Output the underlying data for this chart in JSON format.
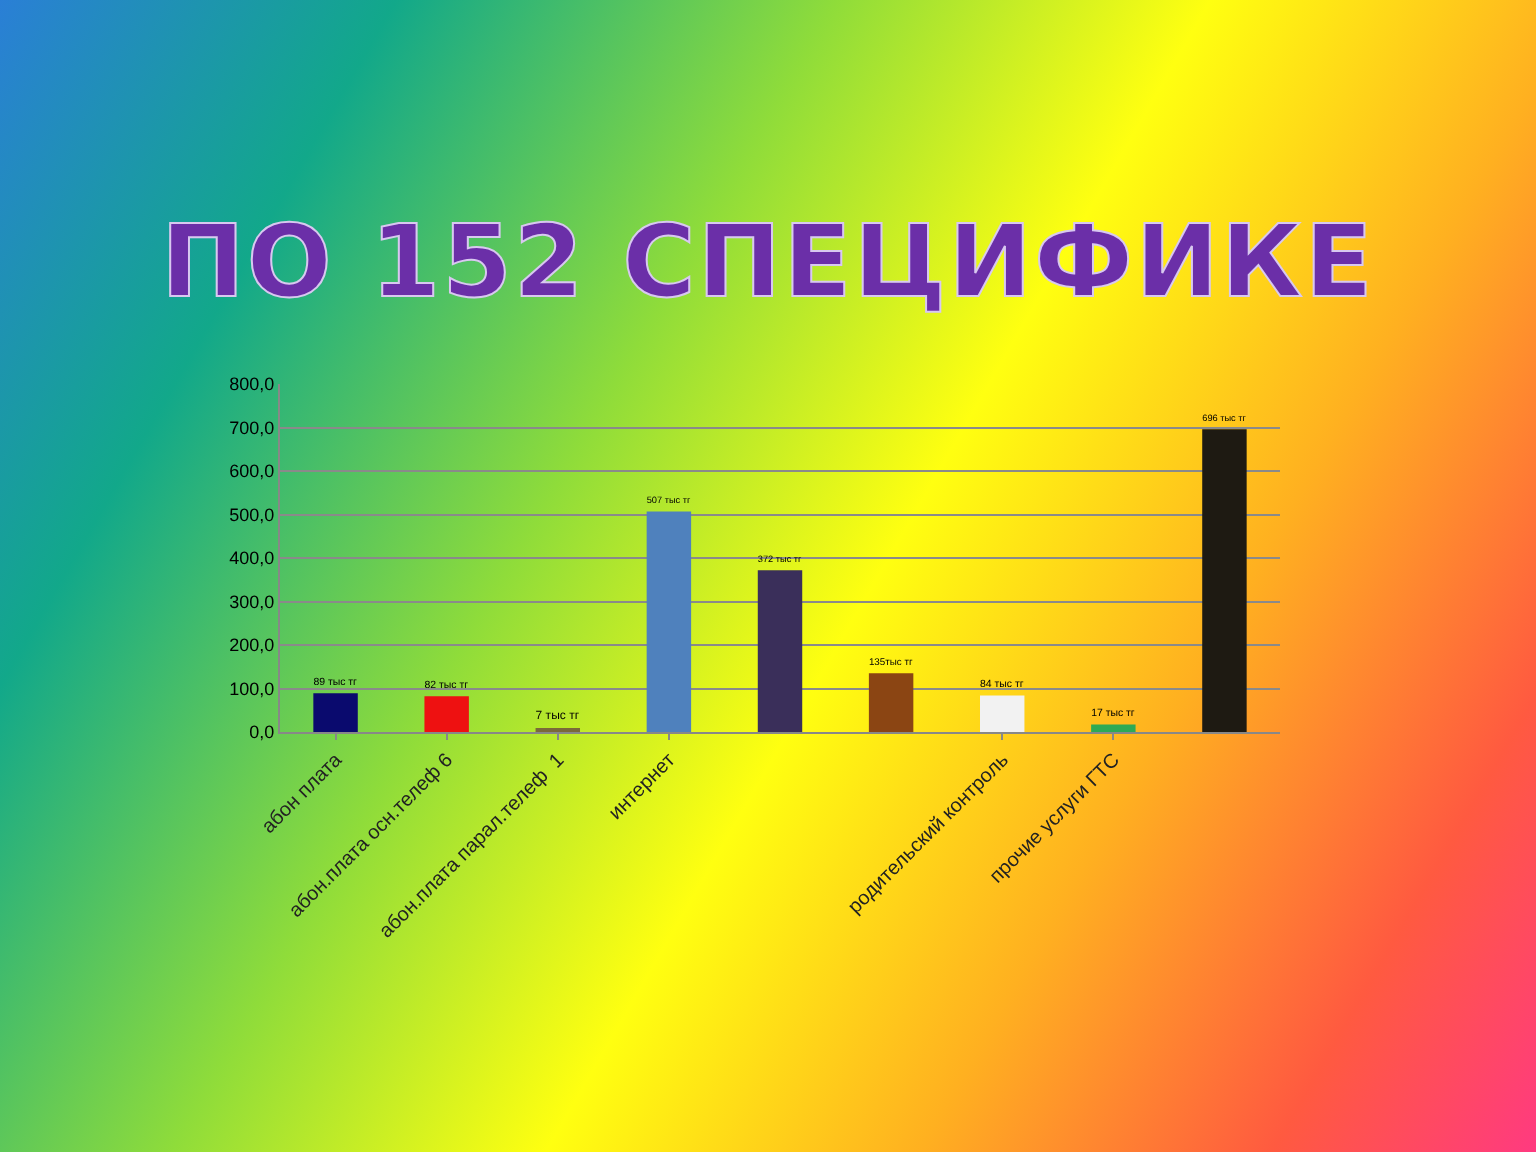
{
  "chart_data": {
    "type": "bar",
    "title": "ПО 152 СПЕЦИФИКЕ",
    "categories": [
      "абон плата",
      "абон.плата осн.телеф 6",
      "абон.плата парал.телеф  1",
      "интернет",
      null,
      null,
      "родительский контроль",
      "прочие услуги ГТС",
      null
    ],
    "values": [
      89,
      82,
      7,
      507,
      372,
      135,
      84,
      17,
      696
    ],
    "colors": [
      "#0a0a6e",
      "#ee1111",
      "#7a6a3a",
      "#4f81bd",
      "#3a2f5a",
      "#8b4513",
      "#f2f2f2",
      "#2eaa55",
      "#1e1a12"
    ],
    "value_labels": [
      "89 тыс тг",
      "82 тыс тг",
      "7 тыс тг",
      "507 тыс тг",
      "372 тыс тг",
      "135тыс тг",
      "84 тыс тг",
      "17 тыс тг",
      "696 тыс тг"
    ],
    "ylim": [
      0,
      800
    ],
    "yticks": [
      {
        "value": 0,
        "label": "0,0"
      },
      {
        "value": 100,
        "label": "100,0"
      },
      {
        "value": 200,
        "label": "200,0"
      },
      {
        "value": 300,
        "label": "300,0"
      },
      {
        "value": 400,
        "label": "400,0"
      },
      {
        "value": 500,
        "label": "500,0"
      },
      {
        "value": 600,
        "label": "600,0"
      },
      {
        "value": 700,
        "label": "700,0"
      },
      {
        "value": 800,
        "label": "800,0"
      }
    ],
    "grid": "y",
    "legend": false
  }
}
